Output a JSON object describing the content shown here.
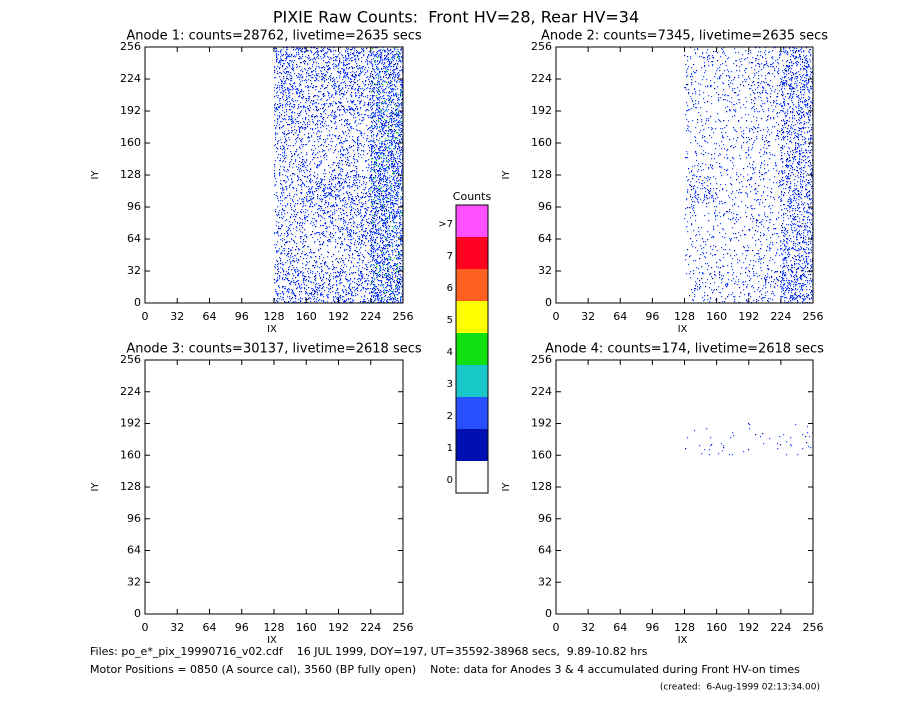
{
  "title": "PIXIE Raw Counts:  Front HV=28, Rear HV=34",
  "footer": [
    "Files: po_e*_pix_19990716_v02.cdf    16 JUL 1999, DOY=197, UT=35592-38968 secs,  9.89-10.82 hrs",
    "Motor Positions = 0850 (A source cal), 3560 (BP fully open)    Note: data for Anodes 3 & 4 accumulated during Front HV-on times",
    "(created:  6-Aug-1999 02:13:34.00)"
  ],
  "colorbar": {
    "title": "Counts",
    "labels": [
      "0",
      "1",
      "2",
      "3",
      "4",
      "5",
      "6",
      "7",
      ">7"
    ],
    "colors": [
      "#ffffff",
      "#0010b0",
      "#2850ff",
      "#18c8c8",
      "#10e010",
      "#ffff00",
      "#ff6020",
      "#ff0020",
      "#ff50ff"
    ]
  },
  "chart_data": [
    {
      "type": "heatmap",
      "title": "Anode 1: counts=28762, livetime=2635 secs",
      "x_label": "IX",
      "y_label": "IY",
      "xlim": [
        0,
        256
      ],
      "ylim": [
        0,
        256
      ],
      "xticks": [
        0,
        32,
        64,
        96,
        128,
        160,
        192,
        224,
        256
      ],
      "yticks": [
        0,
        32,
        64,
        96,
        128,
        160,
        192,
        224,
        256
      ],
      "z": [
        [
          0,
          0,
          0,
          0,
          0.3,
          0.3,
          0.3,
          0.6
        ],
        [
          0,
          0,
          0,
          0,
          0.2,
          0.15,
          0.2,
          0.5
        ],
        [
          0,
          0,
          0,
          0,
          0.2,
          0.2,
          0.3,
          0.55
        ],
        [
          0,
          0,
          0,
          0,
          0.2,
          0.35,
          0.3,
          0.6
        ],
        [
          0,
          0,
          0,
          0,
          0.2,
          0.15,
          0.2,
          0.6
        ],
        [
          0,
          0,
          0,
          0,
          0.25,
          0.2,
          0.2,
          0.55
        ],
        [
          0,
          0,
          0,
          0,
          0.3,
          0.25,
          0.3,
          0.5
        ],
        [
          0,
          0,
          0,
          0,
          0.35,
          0.3,
          0.35,
          0.5
        ]
      ]
    },
    {
      "type": "heatmap",
      "title": "Anode 2: counts=7345, livetime=2635 secs",
      "x_label": "IX",
      "y_label": "IY",
      "xlim": [
        0,
        256
      ],
      "ylim": [
        0,
        256
      ],
      "xticks": [
        0,
        32,
        64,
        96,
        128,
        160,
        192,
        224,
        256
      ],
      "yticks": [
        0,
        32,
        64,
        96,
        128,
        160,
        192,
        224,
        256
      ],
      "z": [
        [
          0,
          0,
          0,
          0,
          0.1,
          0.12,
          0.15,
          0.4
        ],
        [
          0,
          0,
          0,
          0,
          0.08,
          0.08,
          0.1,
          0.35
        ],
        [
          0,
          0,
          0,
          0,
          0.08,
          0.08,
          0.1,
          0.3
        ],
        [
          0,
          0,
          0,
          0,
          0.18,
          0.08,
          0.1,
          0.3
        ],
        [
          0,
          0,
          0,
          0,
          0.08,
          0.08,
          0.1,
          0.3
        ],
        [
          0,
          0,
          0,
          0,
          0.08,
          0.08,
          0.12,
          0.3
        ],
        [
          0,
          0,
          0,
          0,
          0.1,
          0.1,
          0.15,
          0.35
        ],
        [
          0,
          0,
          0,
          0,
          0.1,
          0.1,
          0.15,
          0.35
        ]
      ]
    },
    {
      "type": "heatmap",
      "title": "Anode 3: counts=30137, livetime=2618 secs",
      "x_label": "IX",
      "y_label": "IY",
      "xlim": [
        0,
        256
      ],
      "ylim": [
        0,
        256
      ],
      "xticks": [
        0,
        32,
        64,
        96,
        128,
        160,
        192,
        224,
        256
      ],
      "yticks": [
        0,
        32,
        64,
        96,
        128,
        160,
        192,
        224,
        256
      ],
      "z": [
        [
          0,
          0,
          0,
          0,
          0,
          0,
          0,
          0
        ],
        [
          0,
          0,
          0,
          0,
          0,
          0,
          0,
          0
        ],
        [
          0,
          0,
          0,
          0,
          0,
          0,
          0,
          0
        ],
        [
          0,
          0,
          0,
          0,
          0,
          0,
          0,
          0
        ],
        [
          0,
          0,
          0,
          0,
          0,
          0,
          0,
          0
        ],
        [
          0,
          0,
          0,
          0,
          0,
          0,
          0,
          0
        ],
        [
          0,
          0,
          0,
          0,
          0,
          0,
          0,
          0
        ],
        [
          0,
          0,
          0,
          0,
          0,
          0,
          0,
          0
        ]
      ]
    },
    {
      "type": "heatmap",
      "title": "Anode 4: counts=174, livetime=2618 secs",
      "x_label": "IX",
      "y_label": "IY",
      "xlim": [
        0,
        256
      ],
      "ylim": [
        0,
        256
      ],
      "xticks": [
        0,
        32,
        64,
        96,
        128,
        160,
        192,
        224,
        256
      ],
      "yticks": [
        0,
        32,
        64,
        96,
        128,
        160,
        192,
        224,
        256
      ],
      "z": [
        [
          0,
          0,
          0,
          0,
          0,
          0,
          0,
          0
        ],
        [
          0,
          0,
          0,
          0,
          0,
          0,
          0,
          0
        ],
        [
          0,
          0,
          0,
          0,
          0,
          0,
          0,
          0
        ],
        [
          0,
          0,
          0,
          0,
          0,
          0,
          0,
          0
        ],
        [
          0,
          0,
          0,
          0,
          0,
          0,
          0,
          0
        ],
        [
          0,
          0,
          0,
          0,
          0.02,
          0.02,
          0.02,
          0.03
        ],
        [
          0,
          0,
          0,
          0,
          0,
          0,
          0,
          0
        ],
        [
          0,
          0,
          0,
          0,
          0,
          0,
          0,
          0
        ]
      ]
    }
  ]
}
